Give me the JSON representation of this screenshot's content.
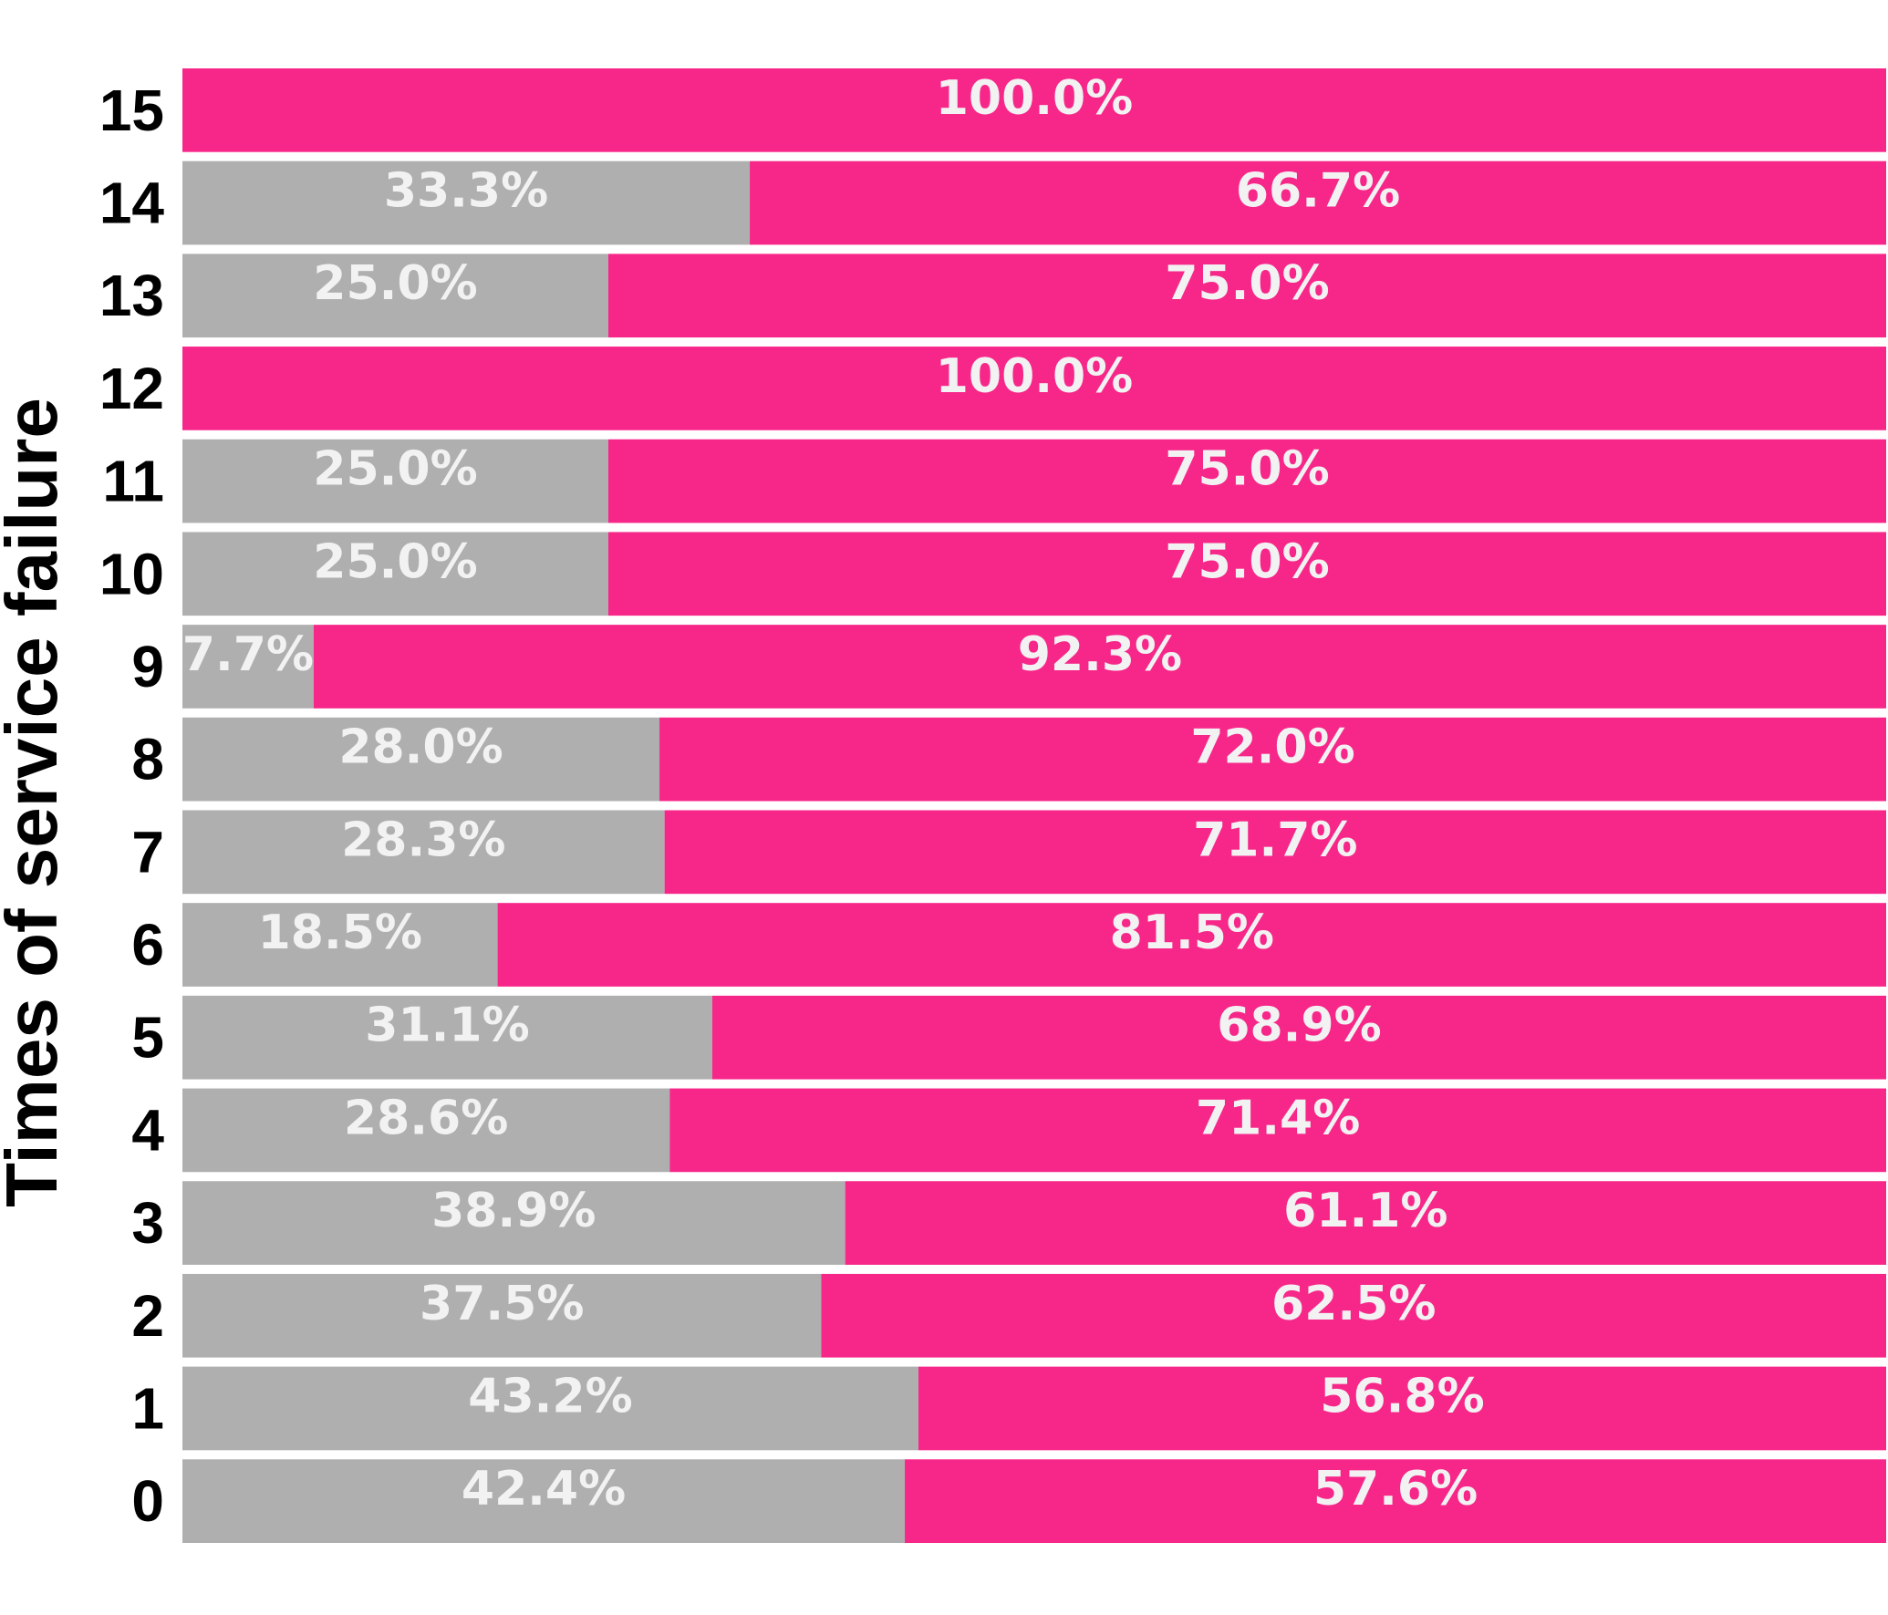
{
  "chart_data": {
    "type": "bar",
    "orientation": "horizontal",
    "stacked": true,
    "normalized_percent": true,
    "ylabel": "Times of service failure",
    "xlabel": "",
    "xlim": [
      0,
      100
    ],
    "grid": false,
    "legend": "none",
    "categories": [
      "0",
      "1",
      "2",
      "3",
      "4",
      "5",
      "6",
      "7",
      "8",
      "9",
      "10",
      "11",
      "12",
      "13",
      "14",
      "15"
    ],
    "series": [
      {
        "color": "#afafaf",
        "values": [
          42.4,
          43.2,
          37.5,
          38.9,
          28.6,
          31.1,
          18.5,
          28.3,
          28.0,
          7.7,
          25.0,
          25.0,
          0,
          25.0,
          33.3,
          0
        ],
        "labels": [
          "42.4%",
          "43.2%",
          "37.5%",
          "38.9%",
          "28.6%",
          "31.1%",
          "18.5%",
          "28.3%",
          "28.0%",
          "7.7%",
          "25.0%",
          "25.0%",
          "",
          "25.0%",
          "33.3%",
          ""
        ]
      },
      {
        "color": "#f7278a",
        "values": [
          57.6,
          56.8,
          62.5,
          61.1,
          71.4,
          68.9,
          81.5,
          71.7,
          72.0,
          92.3,
          75.0,
          75.0,
          100.0,
          75.0,
          66.7,
          100.0
        ],
        "labels": [
          "57.6%",
          "56.8%",
          "62.5%",
          "61.1%",
          "71.4%",
          "68.9%",
          "81.5%",
          "71.7%",
          "72.0%",
          "92.3%",
          "75.0%",
          "75.0%",
          "100.0%",
          "75.0%",
          "66.7%",
          "100.0%"
        ]
      }
    ]
  }
}
